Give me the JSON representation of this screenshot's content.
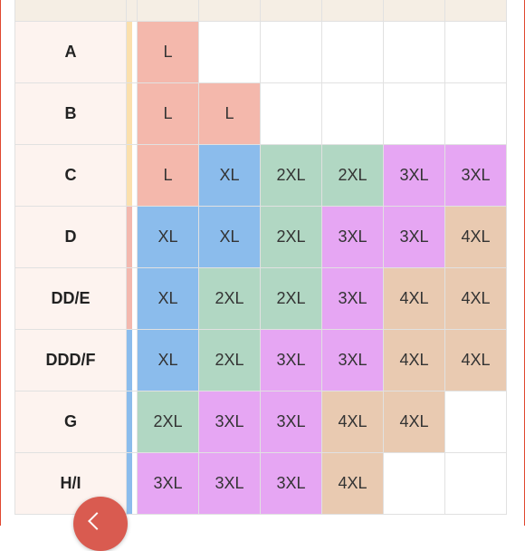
{
  "colors": {
    "L": "#f4b8ac",
    "XL": "#8bbcec",
    "2XL": "#b1d7c3",
    "3XL": "#e6a6f3",
    "4XL": "#e9cab1",
    "empty": "#ffffff",
    "strip_yellow": "#fbe0ad",
    "strip_pink": "#f3b8ae",
    "strip_blue": "#8bbcec"
  },
  "size_chart": {
    "rows": [
      {
        "band": "A",
        "strip": "strip_yellow",
        "sizes": [
          "L",
          "",
          "",
          "",
          "",
          ""
        ]
      },
      {
        "band": "B",
        "strip": "strip_yellow",
        "sizes": [
          "L",
          "L",
          "",
          "",
          "",
          ""
        ]
      },
      {
        "band": "C",
        "strip": "strip_yellow",
        "sizes": [
          "L",
          "XL",
          "2XL",
          "2XL",
          "3XL",
          "3XL"
        ]
      },
      {
        "band": "D",
        "strip": "strip_pink",
        "sizes": [
          "XL",
          "XL",
          "2XL",
          "3XL",
          "3XL",
          "4XL"
        ]
      },
      {
        "band": "DD/E",
        "strip": "strip_pink",
        "sizes": [
          "XL",
          "2XL",
          "2XL",
          "3XL",
          "4XL",
          "4XL"
        ]
      },
      {
        "band": "DDD/F",
        "strip": "strip_blue",
        "sizes": [
          "XL",
          "2XL",
          "3XL",
          "3XL",
          "4XL",
          "4XL"
        ]
      },
      {
        "band": "G",
        "strip": "strip_blue",
        "sizes": [
          "2XL",
          "3XL",
          "3XL",
          "4XL",
          "4XL",
          ""
        ]
      },
      {
        "band": "H/I",
        "strip": "strip_blue",
        "sizes": [
          "3XL",
          "3XL",
          "3XL",
          "4XL",
          "",
          ""
        ]
      }
    ]
  },
  "fab": {
    "icon": "chevron-left-icon"
  }
}
